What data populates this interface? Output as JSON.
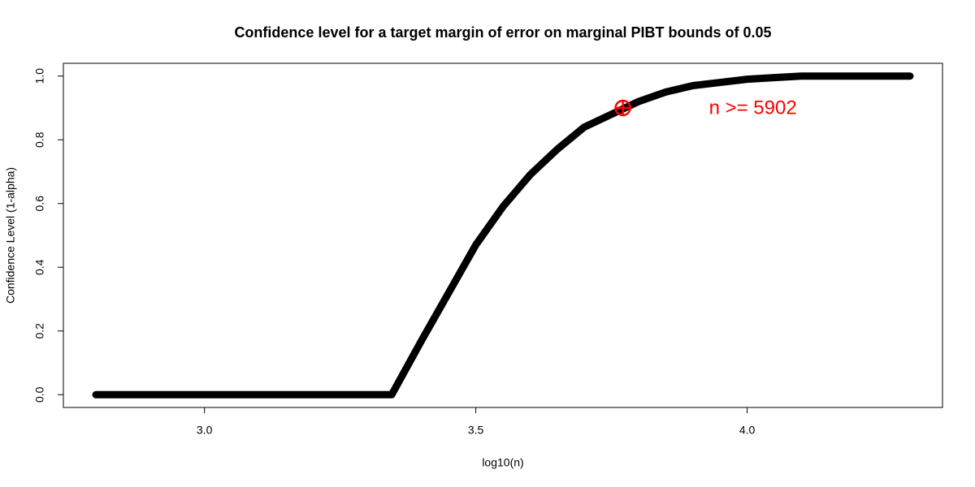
{
  "chart_data": {
    "type": "line",
    "title": "Confidence level for a target margin of error on marginal PIBT bounds of 0.05",
    "xlabel": "log10(n)",
    "ylabel": "Confidence Level (1-alpha)",
    "x": [
      2.8,
      2.85,
      2.9,
      2.95,
      3.0,
      3.05,
      3.1,
      3.15,
      3.2,
      3.25,
      3.3,
      3.345,
      3.4,
      3.45,
      3.5,
      3.55,
      3.6,
      3.65,
      3.7,
      3.75,
      3.8,
      3.85,
      3.9,
      3.95,
      4.0,
      4.05,
      4.1,
      4.15,
      4.2,
      4.25,
      4.3
    ],
    "series": [
      {
        "name": "confidence",
        "color": "#000000",
        "values": [
          0,
          0,
          0,
          0,
          0,
          0,
          0,
          0,
          0,
          0,
          0,
          0,
          0.17,
          0.32,
          0.47,
          0.59,
          0.69,
          0.77,
          0.84,
          0.88,
          0.92,
          0.95,
          0.97,
          0.98,
          0.99,
          0.995,
          1.0,
          1.0,
          1.0,
          1.0,
          1.0
        ]
      }
    ],
    "annotation": {
      "x": 3.771,
      "y": 0.9,
      "label": "n >= 5902",
      "color": "#ff0000"
    },
    "xlim": [
      2.74,
      4.36
    ],
    "ylim": [
      -0.04,
      1.04
    ],
    "xticks": [
      {
        "value": 3.0,
        "label": "3.0"
      },
      3.5,
      {
        "value": 4.0,
        "label": "4.0"
      }
    ],
    "yticks": [
      {
        "value": 0.0,
        "label": "0.0"
      },
      0.2,
      0.4,
      0.6,
      0.8,
      {
        "value": 1.0,
        "label": "1.0"
      }
    ],
    "grid": false
  }
}
